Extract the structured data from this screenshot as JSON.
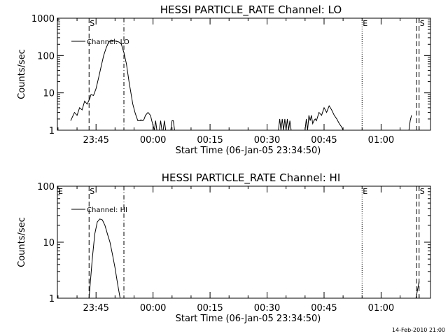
{
  "chart_data": [
    {
      "type": "line",
      "title": "HESSI PARTICLE_RATE Channel: LO",
      "xlabel": "Start Time (06-Jan-05 23:34:50)",
      "ylabel": "Counts/sec",
      "yscale": "log",
      "ylim": [
        1,
        1000
      ],
      "yticks": [
        "1",
        "10",
        "100",
        "1000"
      ],
      "xlim": [
        "23:34:50",
        "01:13:00"
      ],
      "xticks": [
        "23:45",
        "00:00",
        "00:15",
        "00:30",
        "00:45",
        "01:00"
      ],
      "legend": "top-left",
      "series": [
        {
          "name": "Channel: LO",
          "x": [
            "23:38:20",
            "23:39:20",
            "23:40:00",
            "23:40:40",
            "23:41:20",
            "23:42:00",
            "23:42:40",
            "23:43:20",
            "23:43:40",
            "23:44:20",
            "23:45:00",
            "23:45:40",
            "23:46:20",
            "23:47:00",
            "23:47:40",
            "23:48:20",
            "23:49:00",
            "23:49:40",
            "23:50:20",
            "23:51:00",
            "23:51:40",
            "23:52:20",
            "23:53:00",
            "23:53:40",
            "23:54:40",
            "23:55:20",
            "23:56:00",
            "23:56:40",
            "23:56:48",
            "23:57:00",
            "23:57:20",
            "23:57:40",
            "23:58:00",
            "23:58:40",
            "23:59:20",
            "23:59:40",
            "00:00:20",
            "00:00:40",
            "00:01:00",
            "00:01:40",
            "00:02:00",
            "00:02:20",
            "00:02:40",
            "00:03:00",
            "00:03:20",
            "00:04:40",
            "00:05:00",
            "00:05:20",
            "00:05:40",
            "00:33:00",
            "00:33:20",
            "00:33:40",
            "00:34:00",
            "00:34:20",
            "00:34:40",
            "00:35:00",
            "00:35:20",
            "00:35:40",
            "00:36:00",
            "00:36:20",
            "00:36:40",
            "00:40:00",
            "00:40:20",
            "00:40:40",
            "00:41:00",
            "00:41:20",
            "00:41:40",
            "00:42:00",
            "00:42:20",
            "00:42:40",
            "00:43:00",
            "00:43:40",
            "00:44:20",
            "00:45:00",
            "00:45:40",
            "00:46:20",
            "00:47:00",
            "00:47:40",
            "00:48:20",
            "00:49:00",
            "00:49:40",
            "00:50:00",
            "01:07:20",
            "01:07:40",
            "01:08:00"
          ],
          "values": [
            1.8,
            3,
            2.5,
            4,
            3.5,
            6,
            5,
            7,
            9,
            8.5,
            13,
            25,
            50,
            100,
            160,
            230,
            260,
            250,
            240,
            230,
            200,
            120,
            60,
            20,
            5,
            2.8,
            1.8,
            1.8,
            1.9,
            1.8,
            1.8,
            2,
            2.5,
            3,
            2.5,
            1.8,
            1,
            1.8,
            1,
            1,
            1.8,
            1,
            1,
            1.8,
            1,
            1,
            1.8,
            1.8,
            1,
            1,
            2,
            1,
            2,
            1,
            2,
            1,
            2,
            1,
            1.8,
            1,
            1,
            1,
            2,
            1,
            2.5,
            1.8,
            2.5,
            1.5,
            1.8,
            2,
            1.8,
            3,
            2.5,
            4,
            3,
            4.5,
            3.5,
            2.5,
            2,
            1.5,
            1.2,
            1,
            1,
            1.8,
            2.5
          ]
        }
      ],
      "markers": [
        {
          "label": "S",
          "time": "23:43:10",
          "style": "dashed"
        },
        {
          "label": "",
          "time": "23:52:20",
          "style": "dashdot"
        },
        {
          "label": "E",
          "time": "00:55:00",
          "style": "dotted"
        },
        {
          "label": "",
          "time": "01:09:20",
          "style": "dashed"
        },
        {
          "label": "S",
          "time": "01:10:00",
          "style": "dashed"
        }
      ]
    },
    {
      "type": "line",
      "title": "HESSI PARTICLE_RATE Channel: HI",
      "xlabel": "Start Time (06-Jan-05 23:34:50)",
      "ylabel": "Counts/sec",
      "yscale": "log",
      "ylim": [
        1,
        100
      ],
      "yticks": [
        "1",
        "10",
        "100"
      ],
      "xlim": [
        "23:34:50",
        "01:13:00"
      ],
      "xticks": [
        "23:45",
        "00:00",
        "00:15",
        "00:30",
        "00:45",
        "01:00"
      ],
      "legend": "top-left",
      "series": [
        {
          "name": "Channel: HI",
          "x": [
            "23:43:10",
            "23:44:00",
            "23:44:40",
            "23:45:20",
            "23:46:00",
            "23:46:40",
            "23:47:20",
            "23:48:00",
            "23:48:40",
            "23:49:20",
            "23:50:00",
            "23:50:40",
            "23:51:20",
            "01:09:10",
            "01:09:40",
            "01:10:00"
          ],
          "values": [
            1,
            5,
            14,
            23,
            26,
            25,
            20,
            14,
            10,
            6,
            3.5,
            1.8,
            1,
            1,
            1.5,
            2
          ]
        }
      ],
      "markers": [
        {
          "label": "E",
          "time": "23:34:50",
          "style": "solid"
        },
        {
          "label": "S",
          "time": "23:43:10",
          "style": "dashed"
        },
        {
          "label": "",
          "time": "23:52:20",
          "style": "dashdot"
        },
        {
          "label": "E",
          "time": "00:55:00",
          "style": "dotted"
        },
        {
          "label": "",
          "time": "01:09:20",
          "style": "dashed"
        },
        {
          "label": "S",
          "time": "01:10:00",
          "style": "dashed"
        }
      ]
    }
  ],
  "footer": "14-Feb-2010 21:00"
}
